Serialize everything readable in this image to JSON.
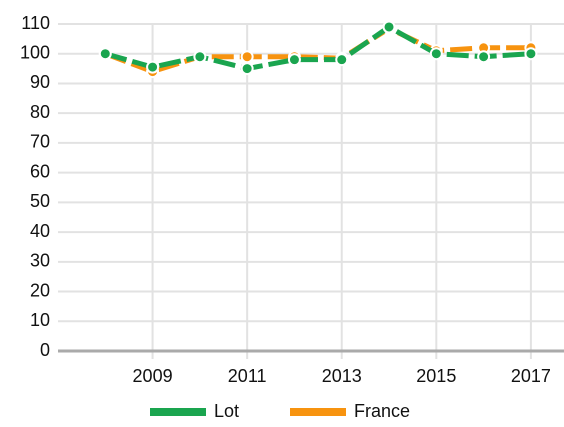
{
  "chart_data": {
    "type": "line",
    "x": [
      2008,
      2009,
      2010,
      2011,
      2012,
      2013,
      2014,
      2015,
      2016,
      2017
    ],
    "series": [
      {
        "name": "Lot",
        "color": "#1aa54f",
        "values": [
          100,
          95.5,
          99,
          95,
          98,
          98,
          109,
          100,
          99,
          100
        ]
      },
      {
        "name": "France",
        "color": "#f7930f",
        "values": [
          100,
          94,
          99,
          99,
          99,
          98.5,
          108.5,
          101,
          102,
          102
        ]
      }
    ],
    "xlim": [
      2007,
      2017.7
    ],
    "xticks": [
      2009,
      2011,
      2013,
      2015,
      2017
    ],
    "ylim": [
      0,
      110
    ],
    "yticks": [
      0,
      10,
      20,
      30,
      40,
      50,
      60,
      70,
      80,
      90,
      100,
      110
    ],
    "grid": true,
    "legend": "bottom"
  }
}
